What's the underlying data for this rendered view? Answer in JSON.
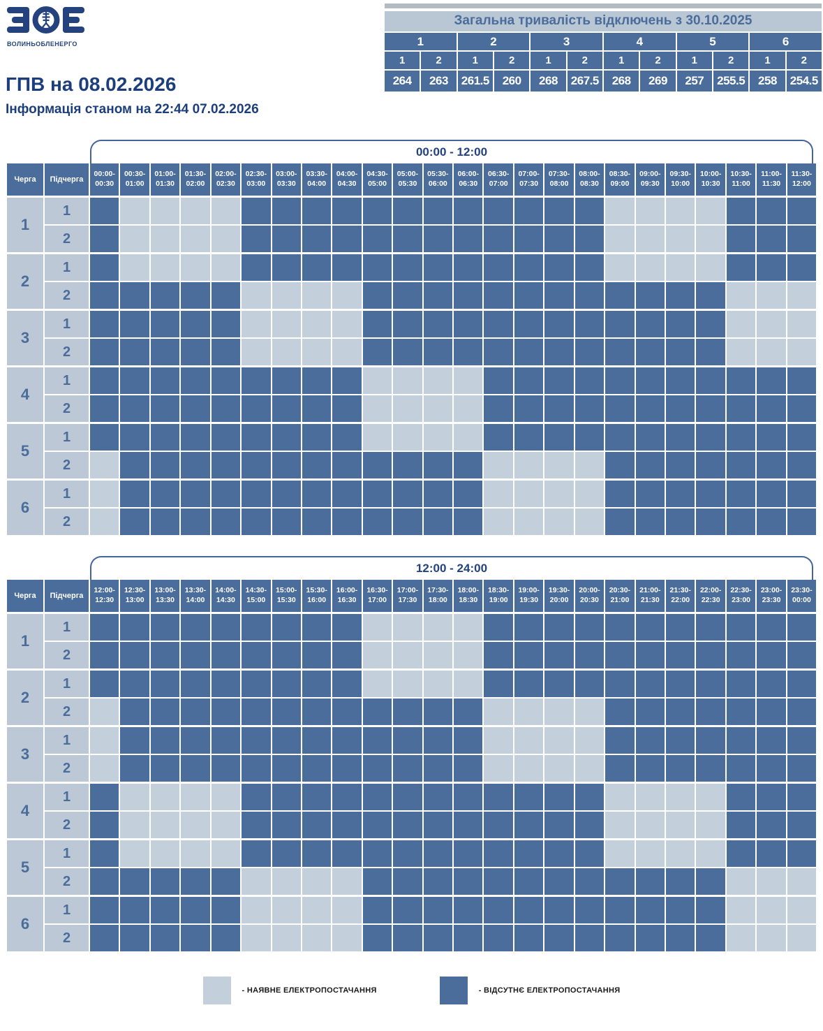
{
  "brand": {
    "logo_text": "ЗОЕ",
    "logo_subtext": "ВОЛИНЬОБЛЕНЕРГО"
  },
  "header": {
    "title": "ГПВ на 08.02.2026",
    "subtitle": "Інформація станом на 22:44 07.02.2026"
  },
  "legend": [
    {
      "state": "available",
      "label": "- НАЯВНЕ ЕЛЕКТРОПОСТАЧАННЯ"
    },
    {
      "state": "outage",
      "label": "- ВІДСУТНЄ ЕЛЕКТРОПОСТАЧАННЯ"
    }
  ],
  "colors": {
    "outage_cell": "#4b6d9b",
    "available_cell": "#c4cfdc",
    "label_cell": "#bcc8d5",
    "navy_text": "#1d3e7d",
    "summary_title_bg": "#b9c6d4",
    "summary_title_text": "#4a6d9b",
    "bracket_border": "#44659c"
  },
  "chart_data": {
    "type": "heatmap",
    "value_encoding": {
      "0": "наявне електропостачання (light cell)",
      "1": "відсутнє електропостачання (dark cell)"
    },
    "row_header_labels": [
      "Черга",
      "Підчерга"
    ],
    "summary": {
      "title": "Загальна тривалість відключень з 30.10.2025",
      "groups": [
        "1",
        "2",
        "3",
        "4",
        "5",
        "6"
      ],
      "subgroup_labels": [
        "1",
        "2",
        "1",
        "2",
        "1",
        "2",
        "1",
        "2",
        "1",
        "2",
        "1",
        "2"
      ],
      "values": [
        "264",
        "263",
        "261.5",
        "260",
        "268",
        "267.5",
        "268",
        "269",
        "257",
        "255.5",
        "258",
        "254.5"
      ]
    },
    "tables": [
      {
        "period": "00:00 - 12:00",
        "time_slots": [
          "00:00-00:30",
          "00:30-01:00",
          "01:00-01:30",
          "01:30-02:00",
          "02:00-02:30",
          "02:30-03:00",
          "03:00-03:30",
          "03:30-04:00",
          "04:00-04:30",
          "04:30-05:00",
          "05:00-05:30",
          "05:30-06:00",
          "06:00-06:30",
          "06:30-07:00",
          "07:00-07:30",
          "07:30-08:00",
          "08:00-08:30",
          "08:30-09:00",
          "09:00-09:30",
          "09:30-10:00",
          "10:00-10:30",
          "10:30-11:00",
          "11:00-11:30",
          "11:30-12:00"
        ],
        "rows": [
          {
            "queue": "1",
            "subqueue": "1",
            "cells": "100001111111111110000111"
          },
          {
            "queue": "1",
            "subqueue": "2",
            "cells": "100001111111111110000111"
          },
          {
            "queue": "2",
            "subqueue": "1",
            "cells": "100001111111111110000111"
          },
          {
            "queue": "2",
            "subqueue": "2",
            "cells": "111110000111111111111000"
          },
          {
            "queue": "3",
            "subqueue": "1",
            "cells": "111110000111111111111000"
          },
          {
            "queue": "3",
            "subqueue": "2",
            "cells": "111110000111111111111000"
          },
          {
            "queue": "4",
            "subqueue": "1",
            "cells": "111111111000011111111111"
          },
          {
            "queue": "4",
            "subqueue": "2",
            "cells": "111111111000011111111111"
          },
          {
            "queue": "5",
            "subqueue": "1",
            "cells": "111111111000011111111111"
          },
          {
            "queue": "5",
            "subqueue": "2",
            "cells": "011111111111100001111111"
          },
          {
            "queue": "6",
            "subqueue": "1",
            "cells": "011111111111100001111111"
          },
          {
            "queue": "6",
            "subqueue": "2",
            "cells": "011111111111100001111111"
          }
        ]
      },
      {
        "period": "12:00 - 24:00",
        "time_slots": [
          "12:00-12:30",
          "12:30-13:00",
          "13:00-13:30",
          "13:30-14:00",
          "14:00-14:30",
          "14:30-15:00",
          "15:00-15:30",
          "15:30-16:00",
          "16:00-16:30",
          "16:30-17:00",
          "17:00-17:30",
          "17:30-18:00",
          "18:00-18:30",
          "18:30-19:00",
          "19:00-19:30",
          "19:30-20:00",
          "20:00-20:30",
          "20:30-21:00",
          "21:00-21:30",
          "21:30-22:00",
          "22:00-22:30",
          "22:30-23:00",
          "23:00-23:30",
          "23:30-00:00"
        ],
        "rows": [
          {
            "queue": "1",
            "subqueue": "1",
            "cells": "111111111000011111111111"
          },
          {
            "queue": "1",
            "subqueue": "2",
            "cells": "111111111000011111111111"
          },
          {
            "queue": "2",
            "subqueue": "1",
            "cells": "111111111000011111111111"
          },
          {
            "queue": "2",
            "subqueue": "2",
            "cells": "011111111111100001111111"
          },
          {
            "queue": "3",
            "subqueue": "1",
            "cells": "011111111111100001111111"
          },
          {
            "queue": "3",
            "subqueue": "2",
            "cells": "011111111111100001111111"
          },
          {
            "queue": "4",
            "subqueue": "1",
            "cells": "100001111111111110000111"
          },
          {
            "queue": "4",
            "subqueue": "2",
            "cells": "100001111111111110000111"
          },
          {
            "queue": "5",
            "subqueue": "1",
            "cells": "100001111111111110000111"
          },
          {
            "queue": "5",
            "subqueue": "2",
            "cells": "111110000111111111111000"
          },
          {
            "queue": "6",
            "subqueue": "1",
            "cells": "111110000111111111111000"
          },
          {
            "queue": "6",
            "subqueue": "2",
            "cells": "111110000111111111111000"
          }
        ]
      }
    ]
  }
}
